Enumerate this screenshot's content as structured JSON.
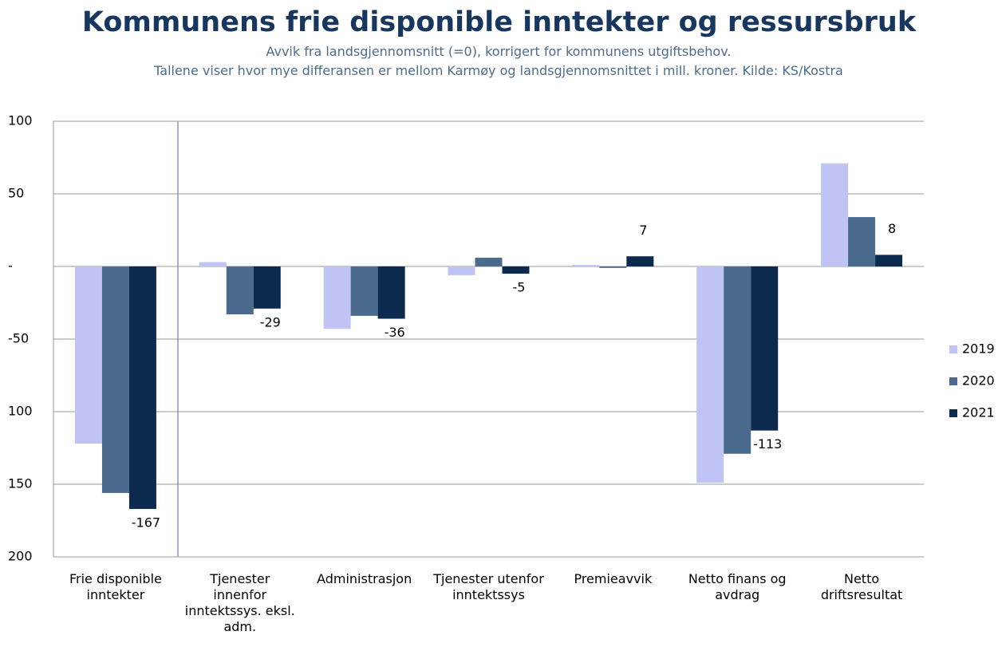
{
  "chart_data": {
    "type": "bar",
    "title": "Kommunens frie disponible inntekter og ressursbruk",
    "subtitle": [
      "Avvik fra landsgjennomsnitt (=0), korrigert for kommunens utgiftsbehov.",
      "Tallene viser hvor mye differansen er mellom Karmøy og landsgjennomsnittet i mill. kroner. Kilde: KS/Kostra"
    ],
    "categories": [
      "Frie disponible inntekter",
      "Tjenester innenfor inntektssys. eksl. adm.",
      "Administrasjon",
      "Tjenester utenfor inntektssys",
      "Premieavvik",
      "Netto finans og avdrag",
      "Netto driftsresultat"
    ],
    "series": [
      {
        "name": "2019",
        "color": "#c0c4f4",
        "values": [
          -122,
          3,
          -43,
          -6,
          1,
          -149,
          71
        ]
      },
      {
        "name": "2020",
        "color": "#4a6a8e",
        "values": [
          -156,
          -33,
          -34,
          6,
          -1,
          -129,
          34
        ]
      },
      {
        "name": "2021",
        "color": "#0b2a4e",
        "values": [
          -167,
          -29,
          -36,
          -5,
          7,
          -113,
          8
        ],
        "data_labels": true
      }
    ],
    "ylim": [
      -200,
      100
    ],
    "yticks": [
      100,
      50,
      {
        "value": 0,
        "label": "-"
      },
      -50,
      {
        "value": -100,
        "label": "100"
      },
      {
        "value": -150,
        "label": "150"
      },
      {
        "value": -200,
        "label": "200"
      }
    ],
    "grid": true,
    "legend": "right"
  }
}
